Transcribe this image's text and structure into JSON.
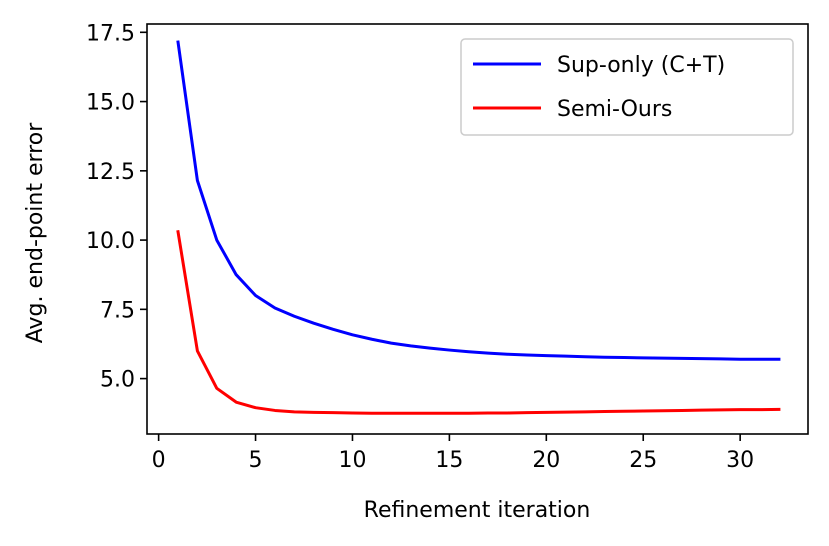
{
  "chart_data": {
    "type": "line",
    "title": "",
    "xlabel": "Refinement iteration",
    "ylabel": "Avg. end-point error",
    "xlim": [
      -0.6,
      33.5
    ],
    "ylim": [
      3.0,
      17.8
    ],
    "xticks": [
      0,
      5,
      10,
      15,
      20,
      25,
      30
    ],
    "yticks": [
      5.0,
      7.5,
      10.0,
      12.5,
      15.0,
      17.5
    ],
    "xtick_labels": [
      "0",
      "5",
      "10",
      "15",
      "20",
      "25",
      "30"
    ],
    "ytick_labels": [
      "5.0",
      "7.5",
      "10.0",
      "12.5",
      "15.0",
      "17.5"
    ],
    "grid": false,
    "legend_position": "upper-right",
    "x": [
      1,
      2,
      3,
      4,
      5,
      6,
      7,
      8,
      9,
      10,
      11,
      12,
      13,
      14,
      15,
      16,
      17,
      18,
      19,
      20,
      21,
      22,
      23,
      24,
      25,
      26,
      27,
      28,
      29,
      30,
      31,
      32
    ],
    "series": [
      {
        "name": "Sup-only (C+T)",
        "color": "#0000ff",
        "values": [
          17.15,
          12.15,
          10.0,
          8.75,
          8.0,
          7.55,
          7.25,
          7.0,
          6.78,
          6.58,
          6.42,
          6.28,
          6.18,
          6.1,
          6.03,
          5.97,
          5.92,
          5.88,
          5.85,
          5.83,
          5.81,
          5.79,
          5.77,
          5.76,
          5.75,
          5.74,
          5.73,
          5.72,
          5.71,
          5.7,
          5.7,
          5.7
        ]
      },
      {
        "name": "Semi-Ours",
        "color": "#ff0000",
        "values": [
          10.3,
          6.0,
          4.65,
          4.15,
          3.95,
          3.85,
          3.8,
          3.78,
          3.77,
          3.76,
          3.75,
          3.75,
          3.75,
          3.75,
          3.75,
          3.75,
          3.76,
          3.76,
          3.77,
          3.78,
          3.79,
          3.8,
          3.81,
          3.82,
          3.83,
          3.84,
          3.85,
          3.86,
          3.87,
          3.88,
          3.88,
          3.89
        ]
      }
    ]
  }
}
